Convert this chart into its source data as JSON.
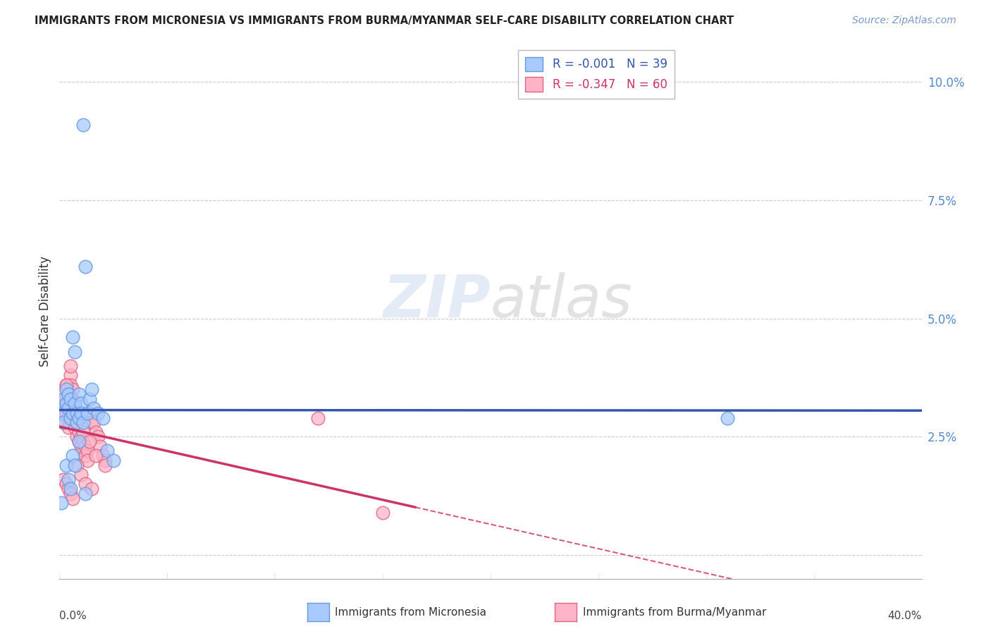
{
  "title": "IMMIGRANTS FROM MICRONESIA VS IMMIGRANTS FROM BURMA/MYANMAR SELF-CARE DISABILITY CORRELATION CHART",
  "source": "Source: ZipAtlas.com",
  "ylabel": "Self-Care Disability",
  "yticks": [
    0.0,
    0.025,
    0.05,
    0.075,
    0.1
  ],
  "ytick_labels": [
    "",
    "2.5%",
    "5.0%",
    "7.5%",
    "10.0%"
  ],
  "xlim": [
    0.0,
    0.4
  ],
  "ylim": [
    -0.005,
    0.108
  ],
  "legend1_r": "R = -0.001",
  "legend1_n": "N = 39",
  "legend2_r": "R = -0.347",
  "legend2_n": "N = 60",
  "color_micronesia_fill": "#A8CAFF",
  "color_micronesia_edge": "#6699DD",
  "color_burma_fill": "#FFB3C6",
  "color_burma_edge": "#DD6688",
  "color_micronesia_line": "#3355AA",
  "color_burma_line": "#CC3366",
  "watermark_zip": "ZIP",
  "watermark_atlas": "atlas",
  "micronesia_x": [
    0.001,
    0.002,
    0.002,
    0.003,
    0.003,
    0.004,
    0.004,
    0.005,
    0.005,
    0.006,
    0.006,
    0.007,
    0.007,
    0.008,
    0.008,
    0.009,
    0.009,
    0.01,
    0.01,
    0.011,
    0.011,
    0.012,
    0.013,
    0.014,
    0.015,
    0.016,
    0.018,
    0.02,
    0.022,
    0.025,
    0.003,
    0.004,
    0.005,
    0.006,
    0.007,
    0.009,
    0.012,
    0.31,
    0.001
  ],
  "micronesia_y": [
    0.03,
    0.028,
    0.033,
    0.035,
    0.032,
    0.031,
    0.034,
    0.033,
    0.029,
    0.03,
    0.046,
    0.043,
    0.032,
    0.03,
    0.028,
    0.034,
    0.029,
    0.032,
    0.03,
    0.028,
    0.091,
    0.061,
    0.03,
    0.033,
    0.035,
    0.031,
    0.03,
    0.029,
    0.022,
    0.02,
    0.019,
    0.016,
    0.014,
    0.021,
    0.019,
    0.024,
    0.013,
    0.029,
    0.011
  ],
  "burma_x": [
    0.001,
    0.001,
    0.002,
    0.002,
    0.003,
    0.003,
    0.003,
    0.004,
    0.004,
    0.004,
    0.005,
    0.005,
    0.005,
    0.006,
    0.006,
    0.006,
    0.007,
    0.007,
    0.007,
    0.008,
    0.008,
    0.008,
    0.009,
    0.009,
    0.01,
    0.01,
    0.011,
    0.011,
    0.012,
    0.012,
    0.013,
    0.013,
    0.014,
    0.015,
    0.016,
    0.017,
    0.018,
    0.019,
    0.02,
    0.021,
    0.002,
    0.003,
    0.004,
    0.005,
    0.006,
    0.008,
    0.01,
    0.012,
    0.015,
    0.12,
    0.003,
    0.004,
    0.006,
    0.007,
    0.009,
    0.011,
    0.014,
    0.017,
    0.021,
    0.15
  ],
  "burma_y": [
    0.034,
    0.031,
    0.03,
    0.028,
    0.036,
    0.033,
    0.03,
    0.032,
    0.029,
    0.027,
    0.038,
    0.04,
    0.036,
    0.035,
    0.033,
    0.03,
    0.032,
    0.029,
    0.027,
    0.03,
    0.028,
    0.025,
    0.026,
    0.024,
    0.025,
    0.023,
    0.024,
    0.022,
    0.023,
    0.021,
    0.022,
    0.02,
    0.03,
    0.028,
    0.028,
    0.026,
    0.025,
    0.023,
    0.021,
    0.02,
    0.016,
    0.015,
    0.014,
    0.013,
    0.012,
    0.019,
    0.017,
    0.015,
    0.014,
    0.029,
    0.036,
    0.034,
    0.032,
    0.03,
    0.029,
    0.026,
    0.024,
    0.021,
    0.019,
    0.009
  ]
}
